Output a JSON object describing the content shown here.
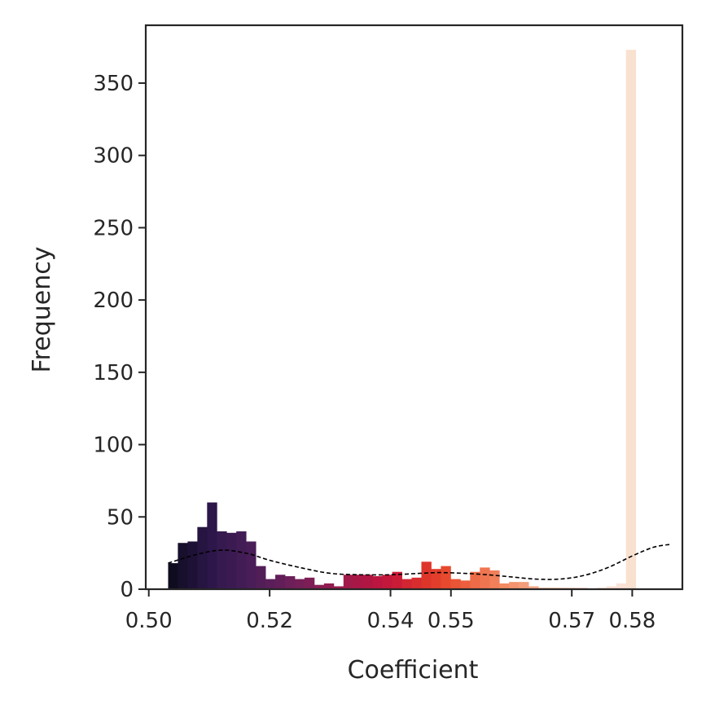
{
  "chart_data": {
    "type": "bar",
    "title": "",
    "xlabel": "Coefficient",
    "ylabel": "Frequency",
    "xlim": [
      0.4995,
      0.5883
    ],
    "ylim": [
      0,
      390
    ],
    "x_ticks": [
      0.5,
      0.52,
      0.54,
      0.55,
      0.57,
      0.58
    ],
    "x_tick_labels": [
      "0.50",
      "0.52",
      "0.54",
      "0.55",
      "0.57",
      "0.58"
    ],
    "y_ticks": [
      0,
      50,
      100,
      150,
      200,
      250,
      300,
      350
    ],
    "y_tick_labels": [
      "0",
      "50",
      "100",
      "150",
      "200",
      "250",
      "300",
      "350"
    ],
    "bin_start": 0.5032,
    "bin_width": 0.001612,
    "values": [
      18,
      32,
      33,
      43,
      60,
      40,
      39,
      40,
      33,
      16,
      7,
      10,
      9,
      7,
      8,
      3,
      4,
      2,
      10,
      10,
      10,
      9,
      10,
      12,
      7,
      8,
      19,
      14,
      16,
      7,
      6,
      12,
      15,
      13,
      4,
      5,
      5,
      2,
      1,
      1,
      1,
      1,
      1,
      0,
      1,
      2,
      4,
      373
    ],
    "colors": [
      "#0f0c20",
      "#170f2c",
      "#1e1136",
      "#261441",
      "#2d164a",
      "#35194f",
      "#3b1a52",
      "#421c55",
      "#491d57",
      "#521e58",
      "#5a1f59",
      "#621e59",
      "#6c1f59",
      "#751f58",
      "#7e1e56",
      "#871e54",
      "#901c51",
      "#991a4d",
      "#a11a4a",
      "#a91747",
      "#b11643",
      "#bb1540",
      "#c3183b",
      "#ca1c37",
      "#d22632",
      "#d82d2e",
      "#de352b",
      "#e33e2c",
      "#e7492f",
      "#ea5535",
      "#ec5e3d",
      "#ed6b47",
      "#ef7550",
      "#f07f5a",
      "#f28a63",
      "#f3946e",
      "#f49d79",
      "#f5a785",
      "#f5b090",
      "#f6b99c",
      "#f7c1a8",
      "#f8c9b3",
      "#f9d0bd",
      "#f9d6c6",
      "#fadbce",
      "#fbe0d4",
      "#fbe2d6",
      "#f9e1d0"
    ],
    "kde_curve": {
      "x": [
        0.5032,
        0.507,
        0.51,
        0.512,
        0.514,
        0.517,
        0.52,
        0.525,
        0.53,
        0.535,
        0.54,
        0.545,
        0.548,
        0.552,
        0.556,
        0.56,
        0.564,
        0.568,
        0.572,
        0.576,
        0.58,
        0.5835,
        0.5863
      ],
      "y": [
        18,
        23,
        26,
        27,
        26.5,
        24,
        20,
        15,
        11,
        10,
        10,
        11,
        11.5,
        11,
        10,
        8.5,
        7,
        7,
        9.5,
        15,
        23,
        29,
        31
      ]
    },
    "grid": false,
    "legend": "none"
  }
}
